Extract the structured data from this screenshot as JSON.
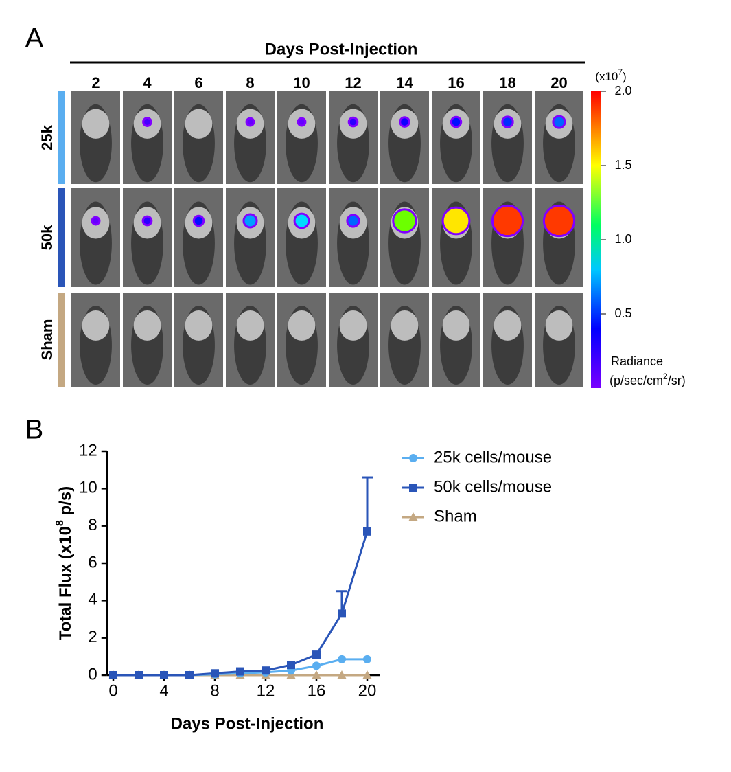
{
  "panel_a": {
    "letter": "A",
    "header": "Days Post-Injection",
    "days": [
      "2",
      "4",
      "6",
      "8",
      "10",
      "12",
      "14",
      "16",
      "18",
      "20"
    ],
    "rows": [
      {
        "name": "25k",
        "color": "#5aaef0",
        "signal": [
          0,
          0.1,
          0,
          0.05,
          0.05,
          0.15,
          0.2,
          0.25,
          0.3,
          0.4
        ]
      },
      {
        "name": "50k",
        "color": "#2a55b8",
        "signal": [
          0.05,
          0.15,
          0.25,
          0.5,
          0.6,
          0.4,
          1.3,
          1.6,
          1.9,
          1.9
        ]
      },
      {
        "name": "Sham",
        "color": "#c4a882",
        "signal": [
          0,
          0,
          0,
          0,
          0,
          0,
          0,
          0,
          0,
          0
        ]
      }
    ],
    "colorbar": {
      "unit_prefix": "(x10",
      "unit_exponent": "7",
      "unit_suffix": ")",
      "lim": [
        0,
        2
      ],
      "ticks": [
        {
          "value": 0.5,
          "label": "0.5"
        },
        {
          "value": 1,
          "label": "1.0"
        },
        {
          "value": 1.5,
          "label": "1.5"
        },
        {
          "value": 2,
          "label": "2.0"
        }
      ],
      "title": "Radiance",
      "units_prefix": "(p/sec/cm",
      "units_exponent": "2",
      "units_suffix": "/sr)"
    }
  },
  "chart_data": {
    "type": "line",
    "letter": "B",
    "xlabel": "Days Post-Injection",
    "ylabel": "Total Flux (x10",
    "ylabel_exponent": "8",
    "ylabel_suffix": " p/s)",
    "x": [
      0,
      2,
      4,
      6,
      8,
      10,
      12,
      14,
      16,
      18,
      20
    ],
    "xlim": [
      -0.5,
      21
    ],
    "xticks": [
      0,
      4,
      8,
      12,
      16,
      20
    ],
    "ylim": [
      0,
      12
    ],
    "yticks": [
      0,
      2,
      4,
      6,
      8,
      10,
      12
    ],
    "series": [
      {
        "name": "25k cells/mouse",
        "color": "#5aaef0",
        "marker": "circle",
        "values": [
          0,
          0,
          0,
          0,
          0.05,
          0.1,
          0.15,
          0.25,
          0.5,
          0.85,
          0.85
        ]
      },
      {
        "name": "50k cells/mouse",
        "color": "#2a55b8",
        "marker": "square",
        "values": [
          0,
          0,
          0,
          0,
          0.1,
          0.2,
          0.25,
          0.55,
          1.1,
          3.3,
          7.7
        ],
        "errors": [
          null,
          null,
          null,
          null,
          null,
          null,
          null,
          null,
          null,
          1.2,
          2.9
        ]
      },
      {
        "name": "Sham",
        "color": "#c4a882",
        "marker": "triangle",
        "values": [
          0,
          0,
          0,
          0,
          0,
          0,
          0,
          0,
          0,
          0,
          0
        ]
      }
    ]
  }
}
